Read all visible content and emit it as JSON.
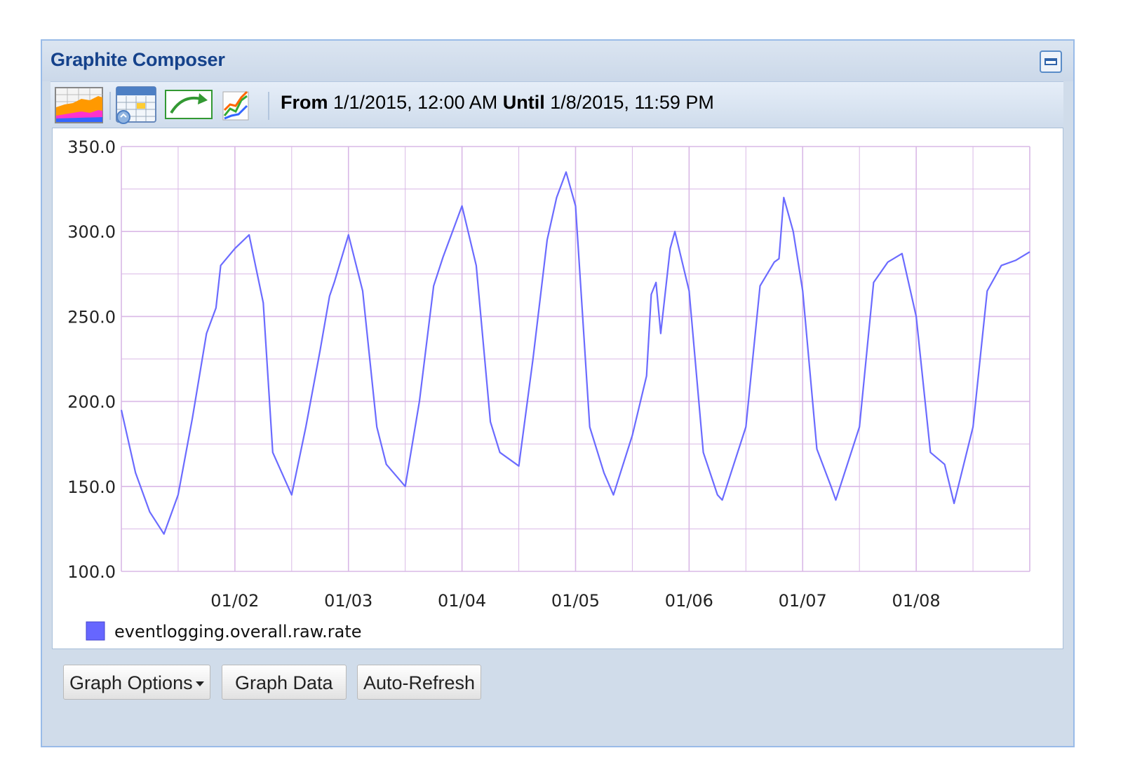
{
  "window": {
    "title": "Graphite Composer"
  },
  "toolbar": {
    "buttons": [
      {
        "name": "graph-options-icon"
      },
      {
        "name": "calendar-icon"
      },
      {
        "name": "refresh-arrow-icon"
      },
      {
        "name": "chart-edit-icon"
      }
    ],
    "from_label": "From",
    "from_value": "1/1/2015, 12:00 AM",
    "until_label": "Until",
    "until_value": "1/8/2015, 11:59 PM"
  },
  "footer": {
    "graph_options_label": "Graph Options",
    "graph_data_label": "Graph Data",
    "auto_refresh_label": "Auto-Refresh"
  },
  "colors": {
    "line": "#6b6bff",
    "grid": "#d9b8e6",
    "legend_swatch": "#6666ff",
    "title": "#15428b"
  },
  "chart_data": {
    "type": "line",
    "title": "",
    "xlabel": "",
    "ylabel": "",
    "ylim": [
      100,
      350
    ],
    "xlim": [
      "2015-01-01T00:00",
      "2015-01-09T00:00"
    ],
    "y_ticks": [
      "350.0",
      "300.0",
      "250.0",
      "200.0",
      "150.0",
      "100.0"
    ],
    "x_ticks": [
      "01/02",
      "01/03",
      "01/04",
      "01/05",
      "01/06",
      "01/07",
      "01/08"
    ],
    "grid": true,
    "legend": "bottom-left",
    "series": [
      {
        "name": "eventlogging.overall.raw.rate",
        "x": [
          "2015-01-01T00:00",
          "2015-01-01T03:00",
          "2015-01-01T06:00",
          "2015-01-01T09:00",
          "2015-01-01T12:00",
          "2015-01-01T15:00",
          "2015-01-01T18:00",
          "2015-01-01T20:00",
          "2015-01-01T21:00",
          "2015-01-02T00:00",
          "2015-01-02T03:00",
          "2015-01-02T06:00",
          "2015-01-02T08:00",
          "2015-01-02T12:00",
          "2015-01-02T15:00",
          "2015-01-02T18:00",
          "2015-01-02T20:00",
          "2015-01-02T21:00",
          "2015-01-03T00:00",
          "2015-01-03T03:00",
          "2015-01-03T06:00",
          "2015-01-03T08:00",
          "2015-01-03T12:00",
          "2015-01-03T15:00",
          "2015-01-03T18:00",
          "2015-01-03T20:00",
          "2015-01-03T22:00",
          "2015-01-04T00:00",
          "2015-01-04T03:00",
          "2015-01-04T06:00",
          "2015-01-04T08:00",
          "2015-01-04T12:00",
          "2015-01-04T15:00",
          "2015-01-04T18:00",
          "2015-01-04T20:00",
          "2015-01-04T22:00",
          "2015-01-05T00:00",
          "2015-01-05T03:00",
          "2015-01-05T06:00",
          "2015-01-05T08:00",
          "2015-01-05T12:00",
          "2015-01-05T15:00",
          "2015-01-05T16:00",
          "2015-01-05T17:00",
          "2015-01-05T18:00",
          "2015-01-05T20:00",
          "2015-01-05T21:00",
          "2015-01-06T00:00",
          "2015-01-06T03:00",
          "2015-01-06T06:00",
          "2015-01-06T07:00",
          "2015-01-06T12:00",
          "2015-01-06T15:00",
          "2015-01-06T18:00",
          "2015-01-06T19:00",
          "2015-01-06T20:00",
          "2015-01-06T22:00",
          "2015-01-07T00:00",
          "2015-01-07T03:00",
          "2015-01-07T06:00",
          "2015-01-07T07:00",
          "2015-01-07T12:00",
          "2015-01-07T15:00",
          "2015-01-07T18:00",
          "2015-01-07T21:00",
          "2015-01-08T00:00",
          "2015-01-08T03:00",
          "2015-01-08T06:00",
          "2015-01-08T08:00",
          "2015-01-08T12:00",
          "2015-01-08T15:00",
          "2015-01-08T18:00",
          "2015-01-08T21:00",
          "2015-01-08T23:59"
        ],
        "y": [
          195,
          158,
          135,
          122,
          145,
          190,
          240,
          255,
          280,
          290,
          298,
          258,
          170,
          145,
          185,
          230,
          262,
          270,
          298,
          265,
          185,
          163,
          150,
          200,
          268,
          285,
          300,
          315,
          280,
          188,
          170,
          162,
          225,
          295,
          320,
          335,
          315,
          185,
          158,
          145,
          180,
          215,
          263,
          270,
          240,
          290,
          300,
          265,
          170,
          145,
          142,
          185,
          268,
          282,
          284,
          320,
          300,
          265,
          172,
          150,
          142,
          185,
          270,
          282,
          287,
          250,
          170,
          163,
          140,
          185,
          265,
          280,
          283,
          288
        ]
      }
    ]
  }
}
